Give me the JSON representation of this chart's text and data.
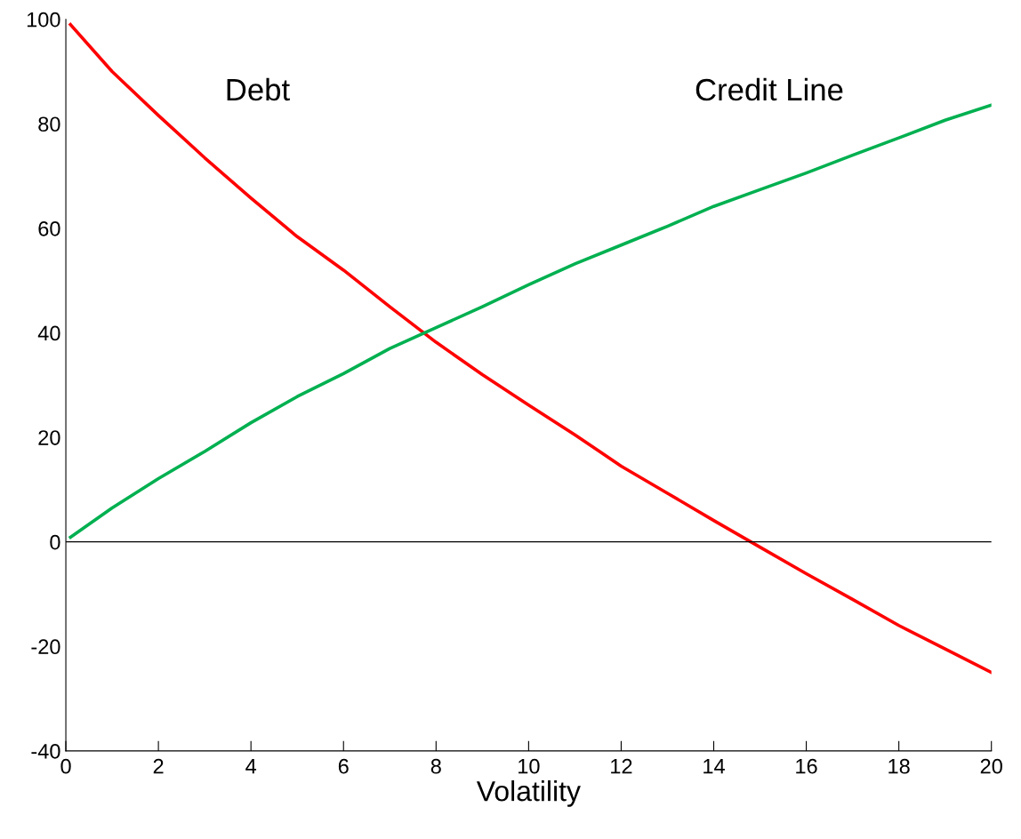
{
  "chart_data": {
    "type": "line",
    "xlabel": "Volatility",
    "x": [
      0.1,
      1,
      2,
      3,
      4,
      5,
      6,
      7,
      8,
      9,
      10,
      11,
      12,
      13,
      14,
      15,
      16,
      17,
      18,
      19,
      20
    ],
    "series": [
      {
        "name": "Debt",
        "color": "#ff0000",
        "values": [
          99,
          90,
          81.6,
          73.5,
          65.8,
          58.4,
          52,
          45,
          38.2,
          32,
          26.2,
          20.5,
          14.5,
          9.3,
          4.1,
          -1,
          -6.1,
          -11,
          -16,
          -20.5,
          -25
        ]
      },
      {
        "name": "Credit Line",
        "color": "#00b050",
        "values": [
          0.9,
          6.5,
          12.1,
          17.3,
          22.8,
          27.8,
          32.2,
          37,
          41,
          45,
          49.2,
          53.2,
          56.8,
          60.4,
          64.2,
          67.4,
          70.6,
          74,
          77.3,
          80.7,
          83.6
        ]
      }
    ],
    "xlim": [
      0,
      20
    ],
    "ylim": [
      -40,
      100
    ],
    "xticks": [
      0,
      2,
      4,
      6,
      8,
      10,
      12,
      14,
      16,
      18,
      20
    ],
    "yticks": [
      -40,
      -20,
      0,
      20,
      40,
      60,
      80,
      100
    ],
    "ref_lines": [
      {
        "axis": "y",
        "value": 0,
        "color": "#000000"
      }
    ],
    "grid": false,
    "legend": false
  }
}
